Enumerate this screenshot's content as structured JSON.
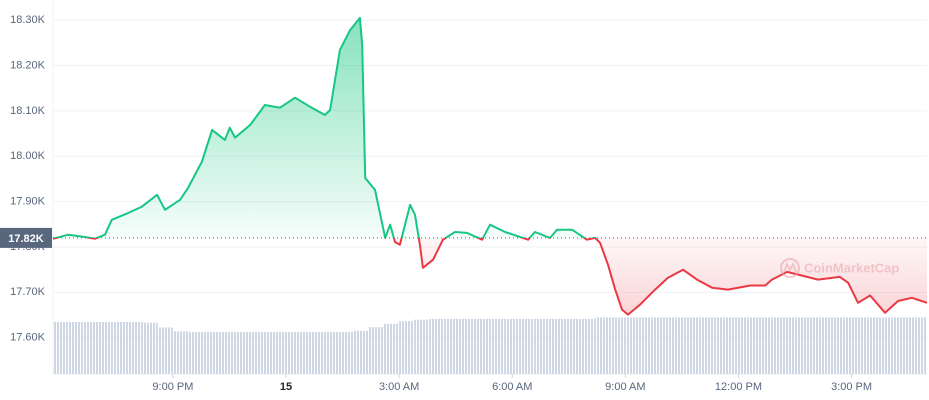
{
  "chart_data": {
    "type": "line",
    "baseline": {
      "value": 17820,
      "label": "17.82K"
    },
    "watermark": "CoinMarketCap",
    "xlim": [
      -6.18,
      17.0
    ],
    "xticks": [
      {
        "value": -3,
        "label": "9:00 PM"
      },
      {
        "value": 0,
        "label": "15"
      },
      {
        "value": 3,
        "label": "3:00 AM"
      },
      {
        "value": 6,
        "label": "6:00 AM"
      },
      {
        "value": 9,
        "label": "9:00 AM"
      },
      {
        "value": 12,
        "label": "12:00 PM"
      },
      {
        "value": 15,
        "label": "3:00 PM"
      }
    ],
    "ylim": [
      17520,
      18340
    ],
    "yticks": [
      {
        "value": 17600,
        "label": "17.60K"
      },
      {
        "value": 17700,
        "label": "17.70K"
      },
      {
        "value": 17800,
        "label": "17.80K"
      },
      {
        "value": 17900,
        "label": "17.90K"
      },
      {
        "value": 18000,
        "label": "18.00K"
      },
      {
        "value": 18100,
        "label": "18.10K"
      },
      {
        "value": 18200,
        "label": "18.20K"
      },
      {
        "value": 18300,
        "label": "18.30K"
      }
    ],
    "grid": true,
    "x": [
      -6.18,
      -5.78,
      -5.33,
      -5.07,
      -4.8,
      -4.62,
      -4.19,
      -3.82,
      -3.42,
      -3.21,
      -2.81,
      -2.6,
      -2.23,
      -1.96,
      -1.62,
      -1.49,
      -1.35,
      -0.95,
      -0.56,
      -0.16,
      0.24,
      0.64,
      1.03,
      1.17,
      1.43,
      1.7,
      1.96,
      2.02,
      2.1,
      2.36,
      2.63,
      2.76,
      2.89,
      3.02,
      3.29,
      3.42,
      3.55,
      3.63,
      3.9,
      4.16,
      4.48,
      4.8,
      5.2,
      5.41,
      5.81,
      6.42,
      6.6,
      7.0,
      7.19,
      7.59,
      7.98,
      8.2,
      8.33,
      8.54,
      8.73,
      8.91,
      9.07,
      9.39,
      9.79,
      10.13,
      10.53,
      10.9,
      11.3,
      11.72,
      12.31,
      12.71,
      12.89,
      13.29,
      13.69,
      14.11,
      14.69,
      14.91,
      15.17,
      15.49,
      15.89,
      16.23,
      16.6,
      17.0
    ],
    "series": [
      {
        "color": "#16c784",
        "below_color": "#ea3943",
        "values": [
          17818,
          17827,
          17822,
          17818,
          17827,
          17860,
          17875,
          17889,
          17915,
          17882,
          17904,
          17930,
          17988,
          18058,
          18036,
          18063,
          18041,
          18069,
          18113,
          18107,
          18129,
          18109,
          18091,
          18102,
          18234,
          18278,
          18305,
          18245,
          17952,
          17926,
          17820,
          17849,
          17811,
          17805,
          17893,
          17871,
          17805,
          17754,
          17772,
          17816,
          17833,
          17831,
          17816,
          17849,
          17833,
          17816,
          17833,
          17820,
          17838,
          17838,
          17816,
          17820,
          17809,
          17761,
          17706,
          17662,
          17651,
          17673,
          17706,
          17732,
          17750,
          17728,
          17710,
          17706,
          17715,
          17715,
          17728,
          17745,
          17737,
          17728,
          17734,
          17721,
          17677,
          17693,
          17655,
          17681,
          17688,
          17677
        ]
      }
    ],
    "y2lim": [
      0,
      100
    ],
    "volume": {
      "color": "#cfd6e4",
      "x": [
        -6.0,
        -5.6,
        -5.2,
        -4.8,
        -4.4,
        -4.0,
        -3.6,
        -3.2,
        -2.8,
        -2.4,
        -2.0,
        -1.6,
        -1.2,
        -0.8,
        -0.4,
        0.0,
        0.4,
        0.8,
        1.2,
        1.6,
        2.0,
        2.4,
        2.8,
        3.2,
        3.6,
        4.0,
        4.4,
        4.8,
        5.2,
        5.6,
        6.0,
        6.4,
        6.8,
        7.2,
        7.6,
        8.0,
        8.4,
        8.8,
        9.2,
        9.6,
        10.0,
        10.4,
        10.8,
        11.2,
        11.6,
        12.0,
        12.4,
        12.8,
        13.2,
        13.6,
        14.0,
        14.4,
        14.8,
        15.2,
        15.6,
        16.0,
        16.4,
        16.8
      ],
      "values": [
        14,
        14,
        14,
        14,
        14,
        14,
        13.8,
        12.5,
        11.5,
        11.3,
        11.3,
        11.3,
        11.3,
        11.3,
        11.3,
        11.3,
        11.3,
        11.3,
        11.3,
        11.3,
        11.6,
        12.6,
        13.5,
        14.2,
        14.6,
        14.8,
        14.8,
        14.8,
        14.8,
        14.8,
        14.8,
        14.8,
        14.8,
        14.8,
        14.8,
        14.8,
        15.2,
        15.2,
        15.2,
        15.2,
        15.2,
        15.2,
        15.2,
        15.2,
        15.2,
        15.2,
        15.2,
        15.2,
        15.2,
        15.2,
        15.2,
        15.2,
        15.2,
        15.2,
        15.2,
        15.2,
        15.2,
        15.2
      ]
    }
  }
}
